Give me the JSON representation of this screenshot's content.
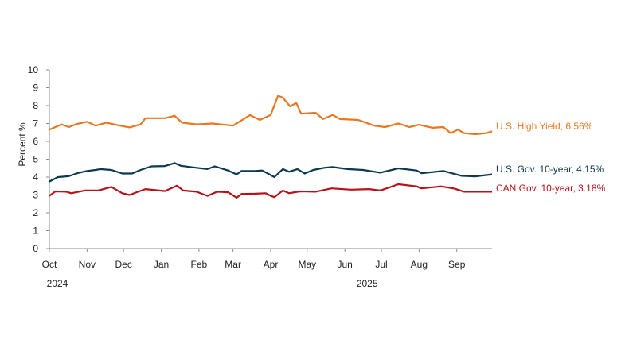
{
  "chart_data": {
    "type": "line",
    "title": "",
    "xlabel": "",
    "ylabel": "Percent  %",
    "ylim": [
      0,
      10
    ],
    "yticks": [
      "0",
      "1",
      "2",
      "3",
      "4",
      "5",
      "6",
      "7",
      "8",
      "9",
      "10"
    ],
    "xlim": [
      "2024-10-01",
      "2025-09-30"
    ],
    "xticks": [
      {
        "date": "2024-10-01",
        "label": "Oct"
      },
      {
        "date": "2024-11-01",
        "label": "Nov"
      },
      {
        "date": "2024-12-01",
        "label": "Dec"
      },
      {
        "date": "2025-01-01",
        "label": "Jan"
      },
      {
        "date": "2025-02-01",
        "label": "Feb"
      },
      {
        "date": "2025-03-01",
        "label": "Mar"
      },
      {
        "date": "2025-04-01",
        "label": "Apr"
      },
      {
        "date": "2025-05-01",
        "label": "May"
      },
      {
        "date": "2025-06-01",
        "label": "Jun"
      },
      {
        "date": "2025-07-01",
        "label": "Jul"
      },
      {
        "date": "2025-08-01",
        "label": "Aug"
      },
      {
        "date": "2025-09-01",
        "label": "Sep"
      }
    ],
    "year_labels": [
      {
        "date": "2024-10-01",
        "label": "2024"
      },
      {
        "date": "2025-06-01",
        "label": "2025"
      }
    ],
    "grid": false,
    "legend": "direct labels at right end of lines",
    "series": [
      {
        "name": "U.S. High Yield, 6.56%",
        "color": "#E87722",
        "points": [
          [
            "2024-10-01",
            6.66
          ],
          [
            "2024-10-11",
            6.95
          ],
          [
            "2024-10-17",
            6.8
          ],
          [
            "2024-10-24",
            6.98
          ],
          [
            "2024-11-01",
            7.1
          ],
          [
            "2024-11-08",
            6.88
          ],
          [
            "2024-11-17",
            7.05
          ],
          [
            "2024-11-28",
            6.88
          ],
          [
            "2024-12-06",
            6.78
          ],
          [
            "2024-12-15",
            6.95
          ],
          [
            "2024-12-19",
            7.3
          ],
          [
            "2025-01-04",
            7.3
          ],
          [
            "2025-01-12",
            7.43
          ],
          [
            "2025-01-18",
            7.05
          ],
          [
            "2025-01-30",
            6.95
          ],
          [
            "2025-02-12",
            7.0
          ],
          [
            "2025-03-01",
            6.88
          ],
          [
            "2025-03-15",
            7.47
          ],
          [
            "2025-03-23",
            7.2
          ],
          [
            "2025-04-01",
            7.48
          ],
          [
            "2025-04-07",
            8.55
          ],
          [
            "2025-04-11",
            8.45
          ],
          [
            "2025-04-17",
            7.95
          ],
          [
            "2025-04-22",
            8.15
          ],
          [
            "2025-04-26",
            7.55
          ],
          [
            "2025-05-08",
            7.6
          ],
          [
            "2025-05-14",
            7.25
          ],
          [
            "2025-05-22",
            7.48
          ],
          [
            "2025-05-28",
            7.25
          ],
          [
            "2025-06-12",
            7.2
          ],
          [
            "2025-06-25",
            6.88
          ],
          [
            "2025-07-04",
            6.8
          ],
          [
            "2025-07-15",
            7.0
          ],
          [
            "2025-07-24",
            6.8
          ],
          [
            "2025-08-01",
            6.93
          ],
          [
            "2025-08-12",
            6.76
          ],
          [
            "2025-08-21",
            6.8
          ],
          [
            "2025-08-27",
            6.46
          ],
          [
            "2025-09-02",
            6.66
          ],
          [
            "2025-09-07",
            6.46
          ],
          [
            "2025-09-16",
            6.4
          ],
          [
            "2025-09-25",
            6.46
          ],
          [
            "2025-09-30",
            6.56
          ]
        ]
      },
      {
        "name": "U.S. Gov. 10-year, 4.15%",
        "color": "#0B3A4F",
        "points": [
          [
            "2024-10-01",
            3.75
          ],
          [
            "2024-10-08",
            4.0
          ],
          [
            "2024-10-17",
            4.05
          ],
          [
            "2024-10-24",
            4.22
          ],
          [
            "2024-11-01",
            4.34
          ],
          [
            "2024-11-08",
            4.4
          ],
          [
            "2024-11-12",
            4.45
          ],
          [
            "2024-11-21",
            4.4
          ],
          [
            "2024-11-30",
            4.2
          ],
          [
            "2024-12-08",
            4.2
          ],
          [
            "2024-12-15",
            4.4
          ],
          [
            "2024-12-24",
            4.6
          ],
          [
            "2025-01-04",
            4.62
          ],
          [
            "2025-01-12",
            4.78
          ],
          [
            "2025-01-17",
            4.63
          ],
          [
            "2025-01-30",
            4.52
          ],
          [
            "2025-02-08",
            4.45
          ],
          [
            "2025-02-14",
            4.6
          ],
          [
            "2025-02-25",
            4.37
          ],
          [
            "2025-03-04",
            4.15
          ],
          [
            "2025-03-08",
            4.34
          ],
          [
            "2025-03-19",
            4.34
          ],
          [
            "2025-03-25",
            4.37
          ],
          [
            "2025-04-04",
            4.0
          ],
          [
            "2025-04-11",
            4.45
          ],
          [
            "2025-04-16",
            4.3
          ],
          [
            "2025-04-23",
            4.45
          ],
          [
            "2025-04-29",
            4.2
          ],
          [
            "2025-05-06",
            4.4
          ],
          [
            "2025-05-15",
            4.52
          ],
          [
            "2025-05-22",
            4.56
          ],
          [
            "2025-06-03",
            4.45
          ],
          [
            "2025-06-16",
            4.4
          ],
          [
            "2025-06-30",
            4.25
          ],
          [
            "2025-07-15",
            4.49
          ],
          [
            "2025-07-30",
            4.37
          ],
          [
            "2025-08-03",
            4.22
          ],
          [
            "2025-08-21",
            4.34
          ],
          [
            "2025-09-05",
            4.07
          ],
          [
            "2025-09-16",
            4.04
          ],
          [
            "2025-09-30",
            4.15
          ]
        ]
      },
      {
        "name": "CAN Gov. 10-year, 3.18%",
        "color": "#B5121B",
        "points": [
          [
            "2024-10-01",
            2.95
          ],
          [
            "2024-10-06",
            3.2
          ],
          [
            "2024-10-15",
            3.18
          ],
          [
            "2024-10-19",
            3.1
          ],
          [
            "2024-10-30",
            3.25
          ],
          [
            "2024-11-10",
            3.25
          ],
          [
            "2024-11-21",
            3.45
          ],
          [
            "2024-11-30",
            3.1
          ],
          [
            "2024-12-06",
            3.0
          ],
          [
            "2024-12-13",
            3.18
          ],
          [
            "2024-12-19",
            3.33
          ],
          [
            "2025-01-04",
            3.22
          ],
          [
            "2025-01-14",
            3.52
          ],
          [
            "2025-01-19",
            3.25
          ],
          [
            "2025-01-30",
            3.18
          ],
          [
            "2025-02-08",
            2.95
          ],
          [
            "2025-02-16",
            3.18
          ],
          [
            "2025-02-25",
            3.15
          ],
          [
            "2025-03-04",
            2.85
          ],
          [
            "2025-03-08",
            3.06
          ],
          [
            "2025-03-19",
            3.07
          ],
          [
            "2025-03-28",
            3.1
          ],
          [
            "2025-04-01",
            2.95
          ],
          [
            "2025-04-04",
            2.88
          ],
          [
            "2025-04-11",
            3.25
          ],
          [
            "2025-04-16",
            3.1
          ],
          [
            "2025-04-25",
            3.2
          ],
          [
            "2025-05-08",
            3.18
          ],
          [
            "2025-05-21",
            3.37
          ],
          [
            "2025-06-06",
            3.3
          ],
          [
            "2025-06-21",
            3.33
          ],
          [
            "2025-06-30",
            3.25
          ],
          [
            "2025-07-15",
            3.6
          ],
          [
            "2025-07-30",
            3.48
          ],
          [
            "2025-08-03",
            3.37
          ],
          [
            "2025-08-19",
            3.48
          ],
          [
            "2025-08-30",
            3.36
          ],
          [
            "2025-09-07",
            3.18
          ],
          [
            "2025-09-30",
            3.18
          ]
        ]
      }
    ]
  }
}
